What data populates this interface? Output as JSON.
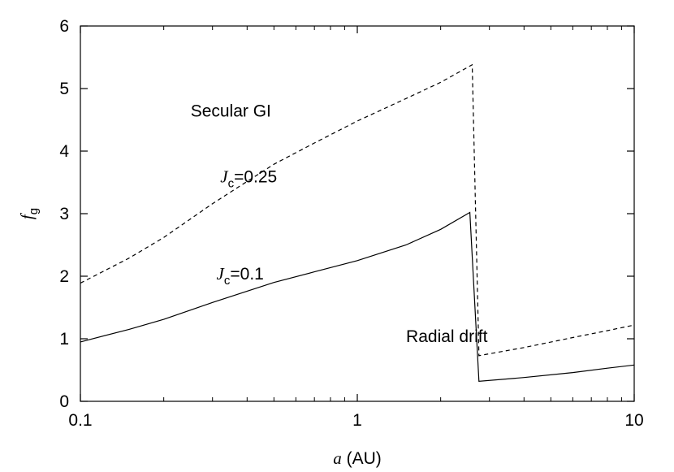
{
  "chart_data": {
    "type": "line",
    "x_scale": "log",
    "xlim": [
      0.1,
      10
    ],
    "ylim": [
      0,
      6
    ],
    "grid": false,
    "legend": "none",
    "xlabel": {
      "italic": "a",
      "rest": " (AU)"
    },
    "ylabel": {
      "italic": "f",
      "sub": "g"
    },
    "x_ticks": [
      {
        "value": 0.1,
        "label": "0.1"
      },
      {
        "value": 1,
        "label": "1"
      },
      {
        "value": 10,
        "label": "10"
      }
    ],
    "y_ticks": [
      {
        "value": 0,
        "label": "0"
      },
      {
        "value": 1,
        "label": "1"
      },
      {
        "value": 2,
        "label": "2"
      },
      {
        "value": 3,
        "label": "3"
      },
      {
        "value": 4,
        "label": "4"
      },
      {
        "value": 5,
        "label": "5"
      },
      {
        "value": 6,
        "label": "6"
      }
    ],
    "series": [
      {
        "style": "dashed",
        "color": "#000000",
        "points": [
          [
            0.1,
            1.89
          ],
          [
            0.15,
            2.29
          ],
          [
            0.2,
            2.62
          ],
          [
            0.3,
            3.16
          ],
          [
            0.5,
            3.79
          ],
          [
            0.7,
            4.13
          ],
          [
            1.0,
            4.48
          ],
          [
            1.5,
            4.84
          ],
          [
            2.0,
            5.1
          ],
          [
            2.6,
            5.38
          ],
          [
            2.75,
            0.73
          ],
          [
            4.0,
            0.86
          ],
          [
            6.0,
            1.02
          ],
          [
            8.0,
            1.13
          ],
          [
            10.0,
            1.22
          ]
        ]
      },
      {
        "style": "solid",
        "color": "#000000",
        "points": [
          [
            0.1,
            0.95
          ],
          [
            0.15,
            1.15
          ],
          [
            0.2,
            1.31
          ],
          [
            0.3,
            1.58
          ],
          [
            0.5,
            1.9
          ],
          [
            0.7,
            2.07
          ],
          [
            1.0,
            2.25
          ],
          [
            1.5,
            2.5
          ],
          [
            2.0,
            2.75
          ],
          [
            2.55,
            3.02
          ],
          [
            2.75,
            0.32
          ],
          [
            4.0,
            0.38
          ],
          [
            6.0,
            0.46
          ],
          [
            8.0,
            0.53
          ],
          [
            10.0,
            0.58
          ]
        ]
      }
    ],
    "annotations": [
      {
        "id": "secular",
        "text": "Secular GI",
        "x": 0.25,
        "y": 4.55
      },
      {
        "id": "jc025",
        "italic": "J",
        "sub": "c",
        "rest": "=0.25",
        "x": 0.32,
        "y": 3.5
      },
      {
        "id": "jc01",
        "italic": "J",
        "sub": "c",
        "rest": "=0.1",
        "x": 0.31,
        "y": 1.95
      },
      {
        "id": "drift",
        "text": "Radial drift",
        "x": 1.5,
        "y": 0.95
      }
    ]
  }
}
